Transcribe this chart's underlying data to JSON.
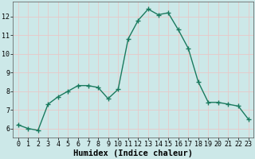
{
  "x": [
    0,
    1,
    2,
    3,
    4,
    5,
    6,
    7,
    8,
    9,
    10,
    11,
    12,
    13,
    14,
    15,
    16,
    17,
    18,
    19,
    20,
    21,
    22,
    23
  ],
  "y": [
    6.2,
    6.0,
    5.9,
    7.3,
    7.7,
    8.0,
    8.3,
    8.3,
    8.2,
    7.6,
    8.1,
    10.8,
    11.8,
    12.4,
    12.1,
    12.2,
    11.3,
    10.3,
    8.5,
    7.4,
    7.4,
    7.3,
    7.2,
    6.5
  ],
  "line_color": "#1a7a5e",
  "marker": "+",
  "marker_size": 4,
  "line_width": 1.0,
  "bg_color": "#cce8e8",
  "grid_color": "#e8c8c8",
  "xlabel": "Humidex (Indice chaleur)",
  "xlabel_fontsize": 7.5,
  "xlim": [
    -0.5,
    23.5
  ],
  "ylim": [
    5.5,
    12.8
  ],
  "yticks": [
    6,
    7,
    8,
    9,
    10,
    11,
    12
  ],
  "xticks": [
    0,
    1,
    2,
    3,
    4,
    5,
    6,
    7,
    8,
    9,
    10,
    11,
    12,
    13,
    14,
    15,
    16,
    17,
    18,
    19,
    20,
    21,
    22,
    23
  ],
  "tick_labelsize": 6.0,
  "ylabel_fontsize": 7
}
